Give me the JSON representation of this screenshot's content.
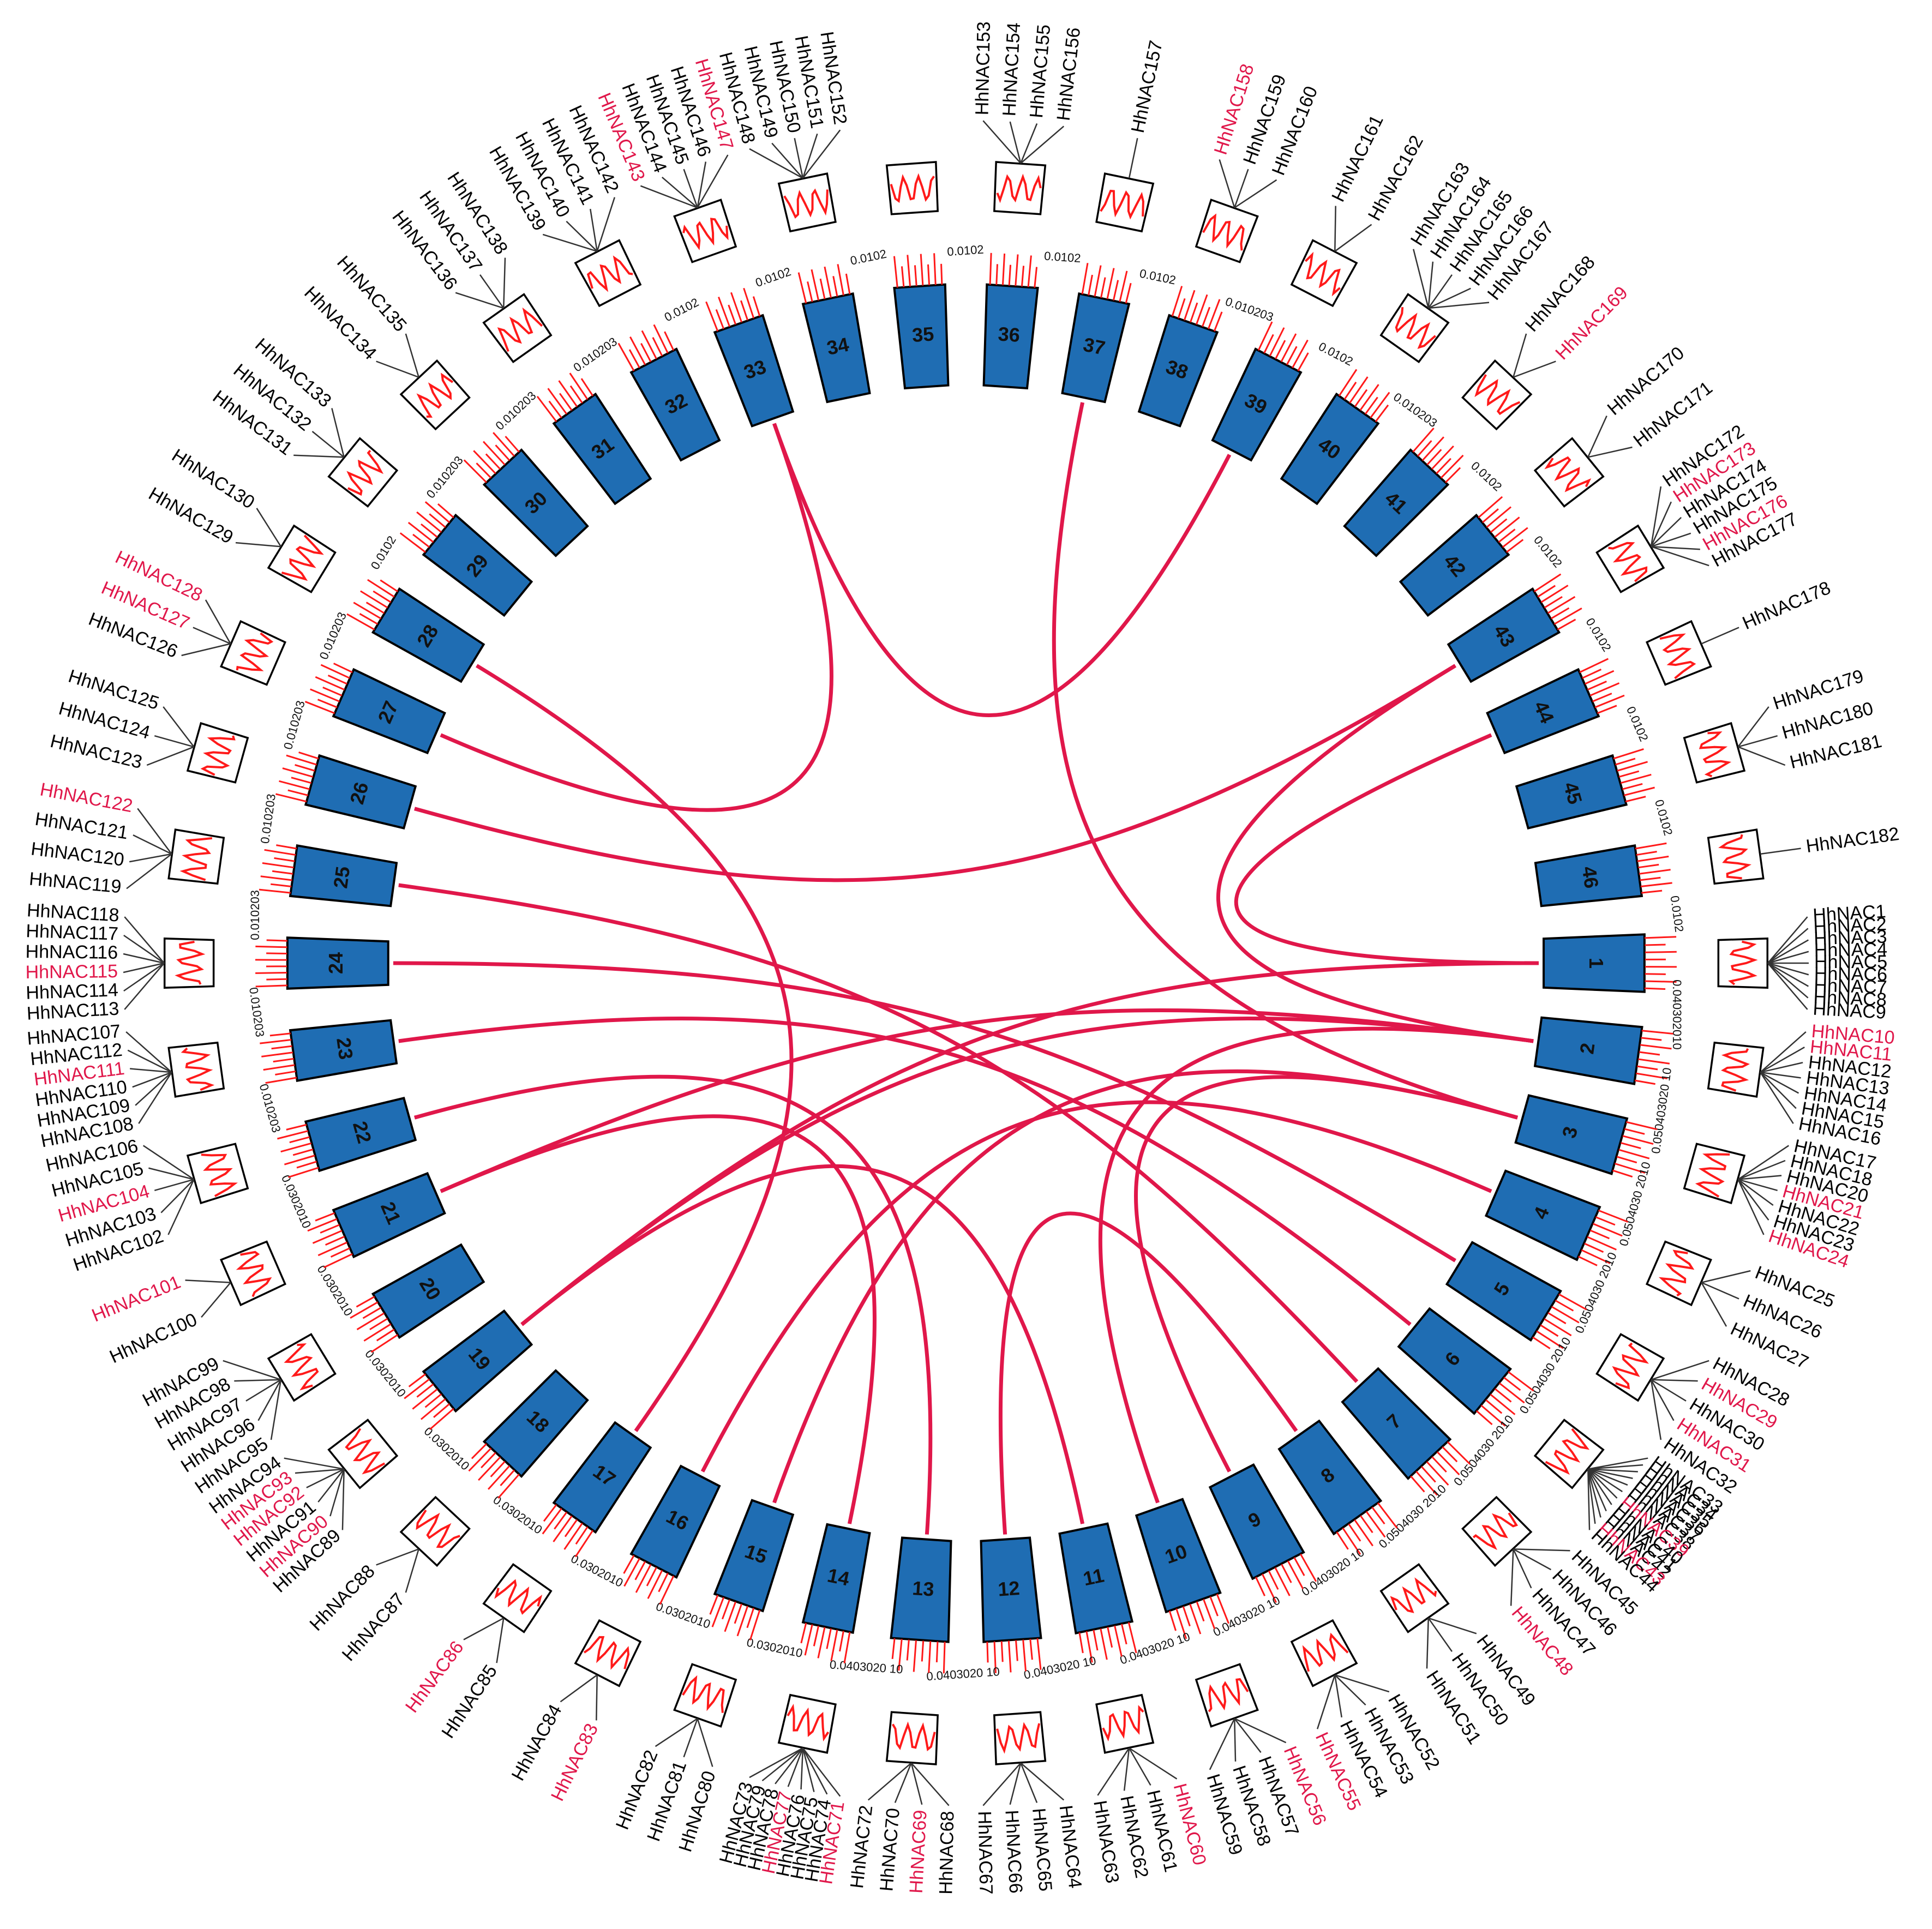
{
  "colors": {
    "chromosome_fill": "#1f6db3",
    "chromosome_stroke": "#000000",
    "link": "#e0174a",
    "density_line": "#ff1a1a",
    "tick": "#ff1a1a",
    "highlight_label": "#e0174a",
    "label": "#000000",
    "histogram_box": "#000000"
  },
  "chromosomes": [
    {
      "id": "1",
      "scale": "0.040302010"
    },
    {
      "id": "2",
      "scale": "0.050403020 10"
    },
    {
      "id": "3",
      "scale": "0.0504030 2010"
    },
    {
      "id": "4",
      "scale": "0.0504030 2010"
    },
    {
      "id": "5",
      "scale": "0.0504030 2010"
    },
    {
      "id": "6",
      "scale": "0.0504030 2010"
    },
    {
      "id": "7",
      "scale": "0.0504030 2010"
    },
    {
      "id": "8",
      "scale": "0.0403020 10"
    },
    {
      "id": "9",
      "scale": "0.0403020 10"
    },
    {
      "id": "10",
      "scale": "0.0403020 10"
    },
    {
      "id": "11",
      "scale": "0.0403020 10"
    },
    {
      "id": "12",
      "scale": "0.0403020 10"
    },
    {
      "id": "13",
      "scale": "0.0403020 10"
    },
    {
      "id": "14",
      "scale": "0.0302010"
    },
    {
      "id": "15",
      "scale": "0.0302010"
    },
    {
      "id": "16",
      "scale": "0.0302010"
    },
    {
      "id": "17",
      "scale": "0.0302010"
    },
    {
      "id": "18",
      "scale": "0.0302010"
    },
    {
      "id": "19",
      "scale": "0.0302010"
    },
    {
      "id": "20",
      "scale": "0.0302010"
    },
    {
      "id": "21",
      "scale": "0.0302010"
    },
    {
      "id": "22",
      "scale": "0.010203"
    },
    {
      "id": "23",
      "scale": "0.010203"
    },
    {
      "id": "24",
      "scale": "0.010203"
    },
    {
      "id": "25",
      "scale": "0.010203"
    },
    {
      "id": "26",
      "scale": "0.010203"
    },
    {
      "id": "27",
      "scale": "0.010203"
    },
    {
      "id": "28",
      "scale": "0.0102"
    },
    {
      "id": "29",
      "scale": "0.010203"
    },
    {
      "id": "30",
      "scale": "0.010203"
    },
    {
      "id": "31",
      "scale": "0.010203"
    },
    {
      "id": "32",
      "scale": "0.0102"
    },
    {
      "id": "33",
      "scale": "0.0102"
    },
    {
      "id": "34",
      "scale": "0.0102"
    },
    {
      "id": "35",
      "scale": "0.0102"
    },
    {
      "id": "36",
      "scale": "0.0102"
    },
    {
      "id": "37",
      "scale": "0.0102"
    },
    {
      "id": "38",
      "scale": "0.010203"
    },
    {
      "id": "39",
      "scale": "0.0102"
    },
    {
      "id": "40",
      "scale": "0.010203"
    },
    {
      "id": "41",
      "scale": "0.0102"
    },
    {
      "id": "42",
      "scale": "0.0102"
    },
    {
      "id": "43",
      "scale": "0.0102"
    },
    {
      "id": "44",
      "scale": "0.0102"
    },
    {
      "id": "45",
      "scale": "0.0102"
    },
    {
      "id": "46",
      "scale": "0.0102"
    }
  ],
  "gene_groups": [
    {
      "chrom": "1",
      "genes": [
        {
          "name": "HhNAC1"
        },
        {
          "name": "HhNAC2"
        },
        {
          "name": "HhNAC3"
        },
        {
          "name": "HhNAC4"
        },
        {
          "name": "HhNAC5"
        },
        {
          "name": "HhNAC6"
        },
        {
          "name": "HhNAC7"
        },
        {
          "name": "HhNAC8"
        },
        {
          "name": "HhNAC9"
        }
      ]
    },
    {
      "chrom": "2",
      "genes": [
        {
          "name": "HhNAC10",
          "highlight": true
        },
        {
          "name": "HhNAC11",
          "highlight": true
        },
        {
          "name": "HhNAC12"
        },
        {
          "name": "HhNAC13"
        },
        {
          "name": "HhNAC14"
        },
        {
          "name": "HhNAC15"
        },
        {
          "name": "HhNAC16"
        }
      ]
    },
    {
      "chrom": "3",
      "genes": [
        {
          "name": "HhNAC17"
        },
        {
          "name": "HhNAC18"
        },
        {
          "name": "HhNAC20"
        },
        {
          "name": "HhNAC21",
          "highlight": true
        },
        {
          "name": "HhNAC22"
        },
        {
          "name": "HhNAC23"
        },
        {
          "name": "HhNAC24",
          "highlight": true
        }
      ]
    },
    {
      "chrom": "4",
      "genes": [
        {
          "name": "HhNAC25"
        },
        {
          "name": "HhNAC26"
        },
        {
          "name": "HhNAC27"
        }
      ]
    },
    {
      "chrom": "5",
      "genes": [
        {
          "name": "HhNAC28"
        },
        {
          "name": "HhNAC29",
          "highlight": true
        },
        {
          "name": "HhNAC30"
        },
        {
          "name": "HhNAC31",
          "highlight": true
        },
        {
          "name": "HhNAC32"
        }
      ]
    },
    {
      "chrom": "6",
      "genes": [
        {
          "name": "HhNAC33"
        },
        {
          "name": "HhNAC34"
        },
        {
          "name": "HhNAC35"
        },
        {
          "name": "HhNAC36"
        },
        {
          "name": "HhNAC37"
        },
        {
          "name": "HhNAC38"
        },
        {
          "name": "HhNAC39",
          "highlight": true
        },
        {
          "name": "HhNAC40"
        },
        {
          "name": "HhNAC41"
        },
        {
          "name": "HhNAC42"
        },
        {
          "name": "HhNAC43",
          "highlight": true
        },
        {
          "name": "HhNAC44"
        }
      ]
    },
    {
      "chrom": "7",
      "genes": [
        {
          "name": "HhNAC45"
        },
        {
          "name": "HhNAC46"
        },
        {
          "name": "HhNAC47"
        },
        {
          "name": "HhNAC48",
          "highlight": true
        }
      ]
    },
    {
      "chrom": "8",
      "genes": [
        {
          "name": "HhNAC49"
        },
        {
          "name": "HhNAC50"
        },
        {
          "name": "HhNAC51"
        }
      ]
    },
    {
      "chrom": "9",
      "genes": [
        {
          "name": "HhNAC52"
        },
        {
          "name": "HhNAC53"
        },
        {
          "name": "HhNAC54"
        },
        {
          "name": "HhNAC55",
          "highlight": true
        }
      ]
    },
    {
      "chrom": "10",
      "genes": [
        {
          "name": "HhNAC56",
          "highlight": true
        },
        {
          "name": "HhNAC57"
        },
        {
          "name": "HhNAC58"
        },
        {
          "name": "HhNAC59"
        }
      ]
    },
    {
      "chrom": "11",
      "genes": [
        {
          "name": "HhNAC60",
          "highlight": true
        },
        {
          "name": "HhNAC61"
        },
        {
          "name": "HhNAC62"
        },
        {
          "name": "HhNAC63"
        }
      ]
    },
    {
      "chrom": "12",
      "genes": [
        {
          "name": "HhNAC64"
        },
        {
          "name": "HhNAC65"
        },
        {
          "name": "HhNAC66"
        },
        {
          "name": "HhNAC67"
        }
      ]
    },
    {
      "chrom": "13",
      "genes": [
        {
          "name": "HhNAC68"
        },
        {
          "name": "HhNAC69",
          "highlight": true
        },
        {
          "name": "HhNAC70"
        },
        {
          "name": "HhNAC72"
        }
      ]
    },
    {
      "chrom": "14",
      "genes": [
        {
          "name": "HhNAC71",
          "highlight": true
        },
        {
          "name": "HhNAC74"
        },
        {
          "name": "HhNAC75"
        },
        {
          "name": "HhNAC76"
        },
        {
          "name": "HhNAC77",
          "highlight": true
        },
        {
          "name": "HhNAC78"
        },
        {
          "name": "HhNAC79"
        },
        {
          "name": "HhNAC73"
        }
      ]
    },
    {
      "chrom": "15",
      "genes": [
        {
          "name": "HhNAC80"
        },
        {
          "name": "HhNAC81"
        },
        {
          "name": "HhNAC82"
        }
      ]
    },
    {
      "chrom": "16",
      "genes": [
        {
          "name": "HhNAC83",
          "highlight": true
        },
        {
          "name": "HhNAC84"
        }
      ]
    },
    {
      "chrom": "17",
      "genes": [
        {
          "name": "HhNAC85"
        },
        {
          "name": "HhNAC86",
          "highlight": true
        }
      ]
    },
    {
      "chrom": "18",
      "genes": [
        {
          "name": "HhNAC87"
        },
        {
          "name": "HhNAC88"
        }
      ]
    },
    {
      "chrom": "19",
      "genes": [
        {
          "name": "HhNAC89"
        },
        {
          "name": "HhNAC90",
          "highlight": true
        },
        {
          "name": "HhNAC91"
        },
        {
          "name": "HhNAC92",
          "highlight": true
        },
        {
          "name": "HhNAC93",
          "highlight": true
        },
        {
          "name": "HhNAC94"
        }
      ]
    },
    {
      "chrom": "20",
      "genes": [
        {
          "name": "HhNAC95"
        },
        {
          "name": "HhNAC96"
        },
        {
          "name": "HhNAC97"
        },
        {
          "name": "HhNAC98"
        },
        {
          "name": "HhNAC99"
        }
      ]
    },
    {
      "chrom": "21",
      "genes": [
        {
          "name": "HhNAC100"
        },
        {
          "name": "HhNAC101",
          "highlight": true
        }
      ]
    },
    {
      "chrom": "22",
      "genes": [
        {
          "name": "HhNAC102"
        },
        {
          "name": "HhNAC103"
        },
        {
          "name": "HhNAC104",
          "highlight": true
        },
        {
          "name": "HhNAC105"
        },
        {
          "name": "HhNAC106"
        }
      ]
    },
    {
      "chrom": "23",
      "genes": [
        {
          "name": "HhNAC108"
        },
        {
          "name": "HhNAC109"
        },
        {
          "name": "HhNAC110"
        },
        {
          "name": "HhNAC111",
          "highlight": true
        },
        {
          "name": "HhNAC112"
        },
        {
          "name": "HhNAC107"
        }
      ]
    },
    {
      "chrom": "24",
      "genes": [
        {
          "name": "HhNAC113"
        },
        {
          "name": "HhNAC114"
        },
        {
          "name": "HhNAC115",
          "highlight": true
        },
        {
          "name": "HhNAC116"
        },
        {
          "name": "HhNAC117"
        },
        {
          "name": "HhNAC118"
        }
      ]
    },
    {
      "chrom": "25",
      "genes": [
        {
          "name": "HhNAC119"
        },
        {
          "name": "HhNAC120"
        },
        {
          "name": "HhNAC121"
        },
        {
          "name": "HhNAC122",
          "highlight": true
        }
      ]
    },
    {
      "chrom": "26",
      "genes": [
        {
          "name": "HhNAC123"
        },
        {
          "name": "HhNAC124"
        },
        {
          "name": "HhNAC125"
        }
      ]
    },
    {
      "chrom": "27",
      "genes": [
        {
          "name": "HhNAC126"
        },
        {
          "name": "HhNAC127",
          "highlight": true
        },
        {
          "name": "HhNAC128",
          "highlight": true
        }
      ]
    },
    {
      "chrom": "28",
      "genes": [
        {
          "name": "HhNAC129"
        },
        {
          "name": "HhNAC130"
        }
      ]
    },
    {
      "chrom": "29",
      "genes": [
        {
          "name": "HhNAC131"
        },
        {
          "name": "HhNAC132"
        },
        {
          "name": "HhNAC133"
        }
      ]
    },
    {
      "chrom": "30",
      "genes": [
        {
          "name": "HhNAC134"
        },
        {
          "name": "HhNAC135"
        }
      ]
    },
    {
      "chrom": "31",
      "genes": [
        {
          "name": "HhNAC136"
        },
        {
          "name": "HhNAC137"
        },
        {
          "name": "HhNAC138"
        }
      ]
    },
    {
      "chrom": "32",
      "genes": [
        {
          "name": "HhNAC139"
        },
        {
          "name": "HhNAC140"
        },
        {
          "name": "HhNAC141"
        },
        {
          "name": "HhNAC142"
        }
      ]
    },
    {
      "chrom": "33",
      "genes": [
        {
          "name": "HhNAC143",
          "highlight": true
        },
        {
          "name": "HhNAC144"
        },
        {
          "name": "HhNAC145"
        },
        {
          "name": "HhNAC146"
        },
        {
          "name": "HhNAC147",
          "highlight": true
        }
      ]
    },
    {
      "chrom": "34",
      "genes": [
        {
          "name": "HhNAC148"
        },
        {
          "name": "HhNAC149"
        },
        {
          "name": "HhNAC150"
        },
        {
          "name": "HhNAC151"
        },
        {
          "name": "HhNAC152"
        }
      ]
    },
    {
      "chrom": "35",
      "genes": []
    },
    {
      "chrom": "36",
      "genes": [
        {
          "name": "HhNAC153"
        },
        {
          "name": "HhNAC154"
        },
        {
          "name": "HhNAC155"
        },
        {
          "name": "HhNAC156"
        }
      ]
    },
    {
      "chrom": "37",
      "genes": [
        {
          "name": "HhNAC157"
        }
      ]
    },
    {
      "chrom": "38",
      "genes": [
        {
          "name": "HhNAC158",
          "highlight": true
        },
        {
          "name": "HhNAC159"
        },
        {
          "name": "HhNAC160"
        }
      ]
    },
    {
      "chrom": "39",
      "genes": [
        {
          "name": "HhNAC161"
        },
        {
          "name": "HhNAC162"
        }
      ]
    },
    {
      "chrom": "40",
      "genes": [
        {
          "name": "HhNAC163"
        },
        {
          "name": "HhNAC164"
        },
        {
          "name": "HhNAC165"
        },
        {
          "name": "HhNAC166"
        },
        {
          "name": "HhNAC167"
        }
      ]
    },
    {
      "chrom": "41",
      "genes": [
        {
          "name": "HhNAC168"
        },
        {
          "name": "HhNAC169",
          "highlight": true
        }
      ]
    },
    {
      "chrom": "42",
      "genes": [
        {
          "name": "HhNAC170"
        },
        {
          "name": "HhNAC171"
        }
      ]
    },
    {
      "chrom": "43",
      "genes": [
        {
          "name": "HhNAC172"
        },
        {
          "name": "HhNAC173",
          "highlight": true
        },
        {
          "name": "HhNAC174"
        },
        {
          "name": "HhNAC175"
        },
        {
          "name": "HhNAC176",
          "highlight": true
        },
        {
          "name": "HhNAC177"
        }
      ]
    },
    {
      "chrom": "44",
      "genes": [
        {
          "name": "HhNAC178"
        }
      ]
    },
    {
      "chrom": "45",
      "genes": [
        {
          "name": "HhNAC179"
        },
        {
          "name": "HhNAC180"
        },
        {
          "name": "HhNAC181"
        }
      ]
    },
    {
      "chrom": "46",
      "genes": [
        {
          "name": "HhNAC182"
        }
      ]
    }
  ],
  "links": [
    {
      "from": "33",
      "to": "27"
    },
    {
      "from": "33",
      "to": "39"
    },
    {
      "from": "37",
      "to": "3"
    },
    {
      "from": "43",
      "to": "26"
    },
    {
      "from": "43",
      "to": "2"
    },
    {
      "from": "25",
      "to": "7"
    },
    {
      "from": "24",
      "to": "5"
    },
    {
      "from": "23",
      "to": "6"
    },
    {
      "from": "22",
      "to": "13"
    },
    {
      "from": "21",
      "to": "2"
    },
    {
      "from": "21",
      "to": "14"
    },
    {
      "from": "19",
      "to": "1"
    },
    {
      "from": "19",
      "to": "2"
    },
    {
      "from": "19",
      "to": "11"
    },
    {
      "from": "17",
      "to": "28"
    },
    {
      "from": "16",
      "to": "4"
    },
    {
      "from": "15",
      "to": "3"
    },
    {
      "from": "10",
      "to": "2"
    },
    {
      "from": "9",
      "to": "3"
    },
    {
      "from": "12",
      "to": "8"
    },
    {
      "from": "44",
      "to": "1"
    }
  ]
}
